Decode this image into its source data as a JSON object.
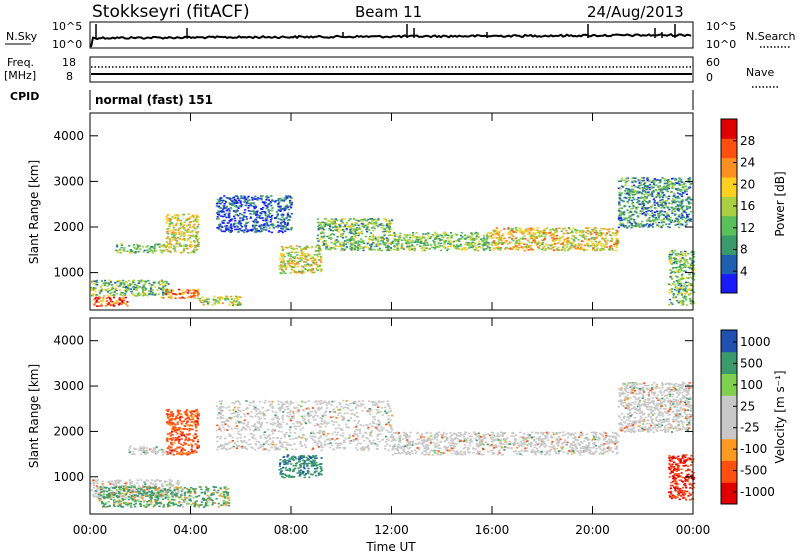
{
  "header": {
    "station": "Stokkseyri (fitACF)",
    "beam": "Beam 11",
    "date": "24/Aug/2013"
  },
  "strips": {
    "nsky_label": "N.Sky",
    "nsearch_label": "N.Search",
    "noise_left_ticks": [
      "10^5",
      "10^0"
    ],
    "noise_right_ticks": [
      "10^5",
      "10^0"
    ],
    "freq_label": "Freq.",
    "freq_unit": "[MHz]",
    "freq_ticks": [
      "18",
      "8"
    ],
    "nave_label": "Nave",
    "nave_ticks": [
      "60",
      "0"
    ],
    "cpid_label": "CPID",
    "cpid_value": "normal (fast) 151"
  },
  "colors": {
    "power": [
      "#1a1aff",
      "#2060b0",
      "#3a9a6a",
      "#5cc05a",
      "#a8d040",
      "#ffd020",
      "#ff9020",
      "#ff5010",
      "#e00000"
    ],
    "velocity_scale": [
      "#e00000",
      "#ff5010",
      "#ff9a20",
      "#c8c8c8",
      "#c8c8c8",
      "#80d050",
      "#3a9a6a",
      "#2050b0"
    ],
    "ground_scatter": "#c8c8c8"
  },
  "chart_data": [
    {
      "type": "heatmap",
      "name": "power",
      "xlabel": "Time UT",
      "ylabel": "Slant Range [km]",
      "xlim": [
        0,
        24
      ],
      "ylim": [
        180,
        4500
      ],
      "x_ticks": [
        "00:00",
        "04:00",
        "08:00",
        "12:00",
        "16:00",
        "20:00",
        "00:00"
      ],
      "y_ticks": [
        1000,
        2000,
        3000,
        4000
      ],
      "colorbar": {
        "label": "Power [dB]",
        "ticks": [
          4,
          8,
          12,
          16,
          20,
          24,
          28
        ],
        "range": [
          0,
          32
        ]
      },
      "regions": [
        {
          "t": [
            0.1,
            1.5
          ],
          "r": [
            280,
            480
          ],
          "level": 0.85
        },
        {
          "t": [
            0.0,
            3.2
          ],
          "r": [
            500,
            850
          ],
          "level": 0.4
        },
        {
          "t": [
            1.0,
            3.0
          ],
          "r": [
            1450,
            1650
          ],
          "level": 0.4
        },
        {
          "t": [
            3.0,
            4.3
          ],
          "r": [
            1450,
            2300
          ],
          "level": 0.55
        },
        {
          "t": [
            2.8,
            4.3
          ],
          "r": [
            450,
            650
          ],
          "level": 0.75
        },
        {
          "t": [
            4.3,
            6.0
          ],
          "r": [
            300,
            500
          ],
          "level": 0.5
        },
        {
          "t": [
            5.0,
            8.0
          ],
          "r": [
            1900,
            2700
          ],
          "level": 0.15
        },
        {
          "t": [
            7.5,
            9.2
          ],
          "r": [
            1000,
            1600
          ],
          "level": 0.55
        },
        {
          "t": [
            9.0,
            12.0
          ],
          "r": [
            1500,
            2200
          ],
          "level": 0.4
        },
        {
          "t": [
            12.0,
            16.0
          ],
          "r": [
            1500,
            1900
          ],
          "level": 0.45
        },
        {
          "t": [
            16.0,
            21.0
          ],
          "r": [
            1500,
            2000
          ],
          "level": 0.6
        },
        {
          "t": [
            21.0,
            23.9
          ],
          "r": [
            2000,
            3100
          ],
          "level": 0.3
        },
        {
          "t": [
            23.0,
            24.0
          ],
          "r": [
            300,
            1500
          ],
          "level": 0.4
        }
      ]
    },
    {
      "type": "heatmap",
      "name": "velocity",
      "xlabel": "Time UT",
      "ylabel": "Slant Range [km]",
      "xlim": [
        0,
        24
      ],
      "ylim": [
        180,
        4500
      ],
      "x_ticks": [
        "00:00",
        "04:00",
        "08:00",
        "12:00",
        "16:00",
        "20:00",
        "00:00"
      ],
      "y_ticks": [
        1000,
        2000,
        3000,
        4000
      ],
      "colorbar": {
        "label": "Velocity [m s⁻¹]",
        "ticks": [
          1000,
          500,
          100,
          25,
          -25,
          -100,
          -500,
          -1000
        ]
      },
      "regions": [
        {
          "t": [
            0.0,
            3.5
          ],
          "r": [
            550,
            950
          ],
          "v": 0
        },
        {
          "t": [
            0.3,
            5.5
          ],
          "r": [
            350,
            800
          ],
          "v": 150
        },
        {
          "t": [
            1.5,
            3.3
          ],
          "r": [
            1500,
            1700
          ],
          "v": 0
        },
        {
          "t": [
            3.0,
            4.3
          ],
          "r": [
            1500,
            2500
          ],
          "v": -300
        },
        {
          "t": [
            5.0,
            12.0
          ],
          "r": [
            1600,
            2700
          ],
          "v": 0
        },
        {
          "t": [
            7.5,
            9.2
          ],
          "r": [
            1000,
            1500
          ],
          "v": 400
        },
        {
          "t": [
            12.0,
            21.0
          ],
          "r": [
            1500,
            2000
          ],
          "v": 0
        },
        {
          "t": [
            21.0,
            23.9
          ],
          "r": [
            2000,
            3100
          ],
          "v": 0
        },
        {
          "t": [
            23.0,
            24.0
          ],
          "r": [
            500,
            1500
          ],
          "v": -500
        }
      ]
    }
  ]
}
